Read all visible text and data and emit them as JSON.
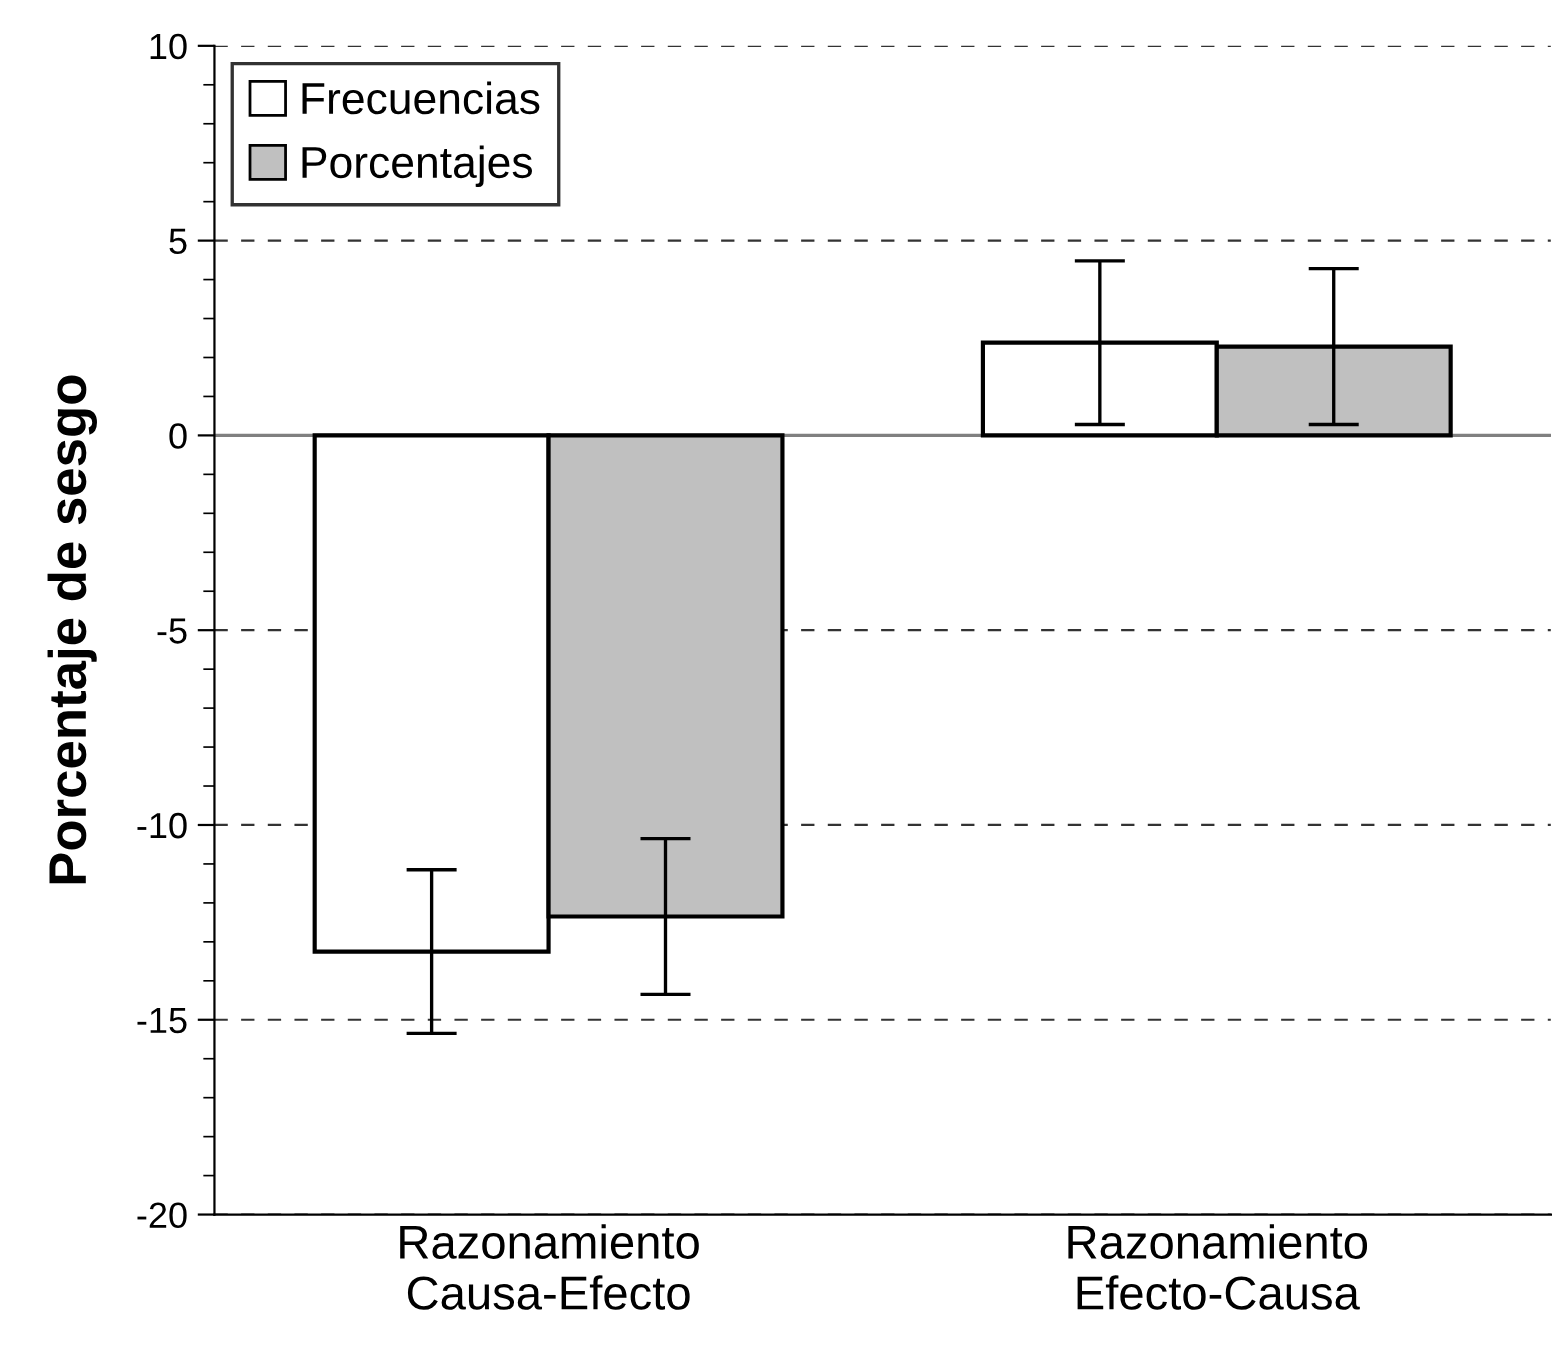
{
  "chart_data": {
    "type": "bar",
    "ylabel": "Porcentaje de sesgo",
    "categories": [
      "Razonamiento\nCausa-Efecto",
      "Razonamiento\nEfecto-Causa"
    ],
    "series": [
      {
        "name": "Frecuencias",
        "color": "#ffffff",
        "values": [
          -13.25,
          2.38
        ],
        "errors": [
          2.1,
          2.1
        ]
      },
      {
        "name": "Porcentajes",
        "color": "#c0c0c0",
        "values": [
          -12.35,
          2.28
        ],
        "errors": [
          2.0,
          2.0
        ]
      }
    ],
    "ylim": [
      -20,
      10
    ],
    "yticks": [
      -20,
      -15,
      -10,
      -5,
      0,
      5,
      10
    ],
    "ref_lines": [
      {
        "axis": "y",
        "value": 0,
        "color": "#808080",
        "line_style": "solid"
      }
    ],
    "grid": "y",
    "legend": "top left"
  }
}
